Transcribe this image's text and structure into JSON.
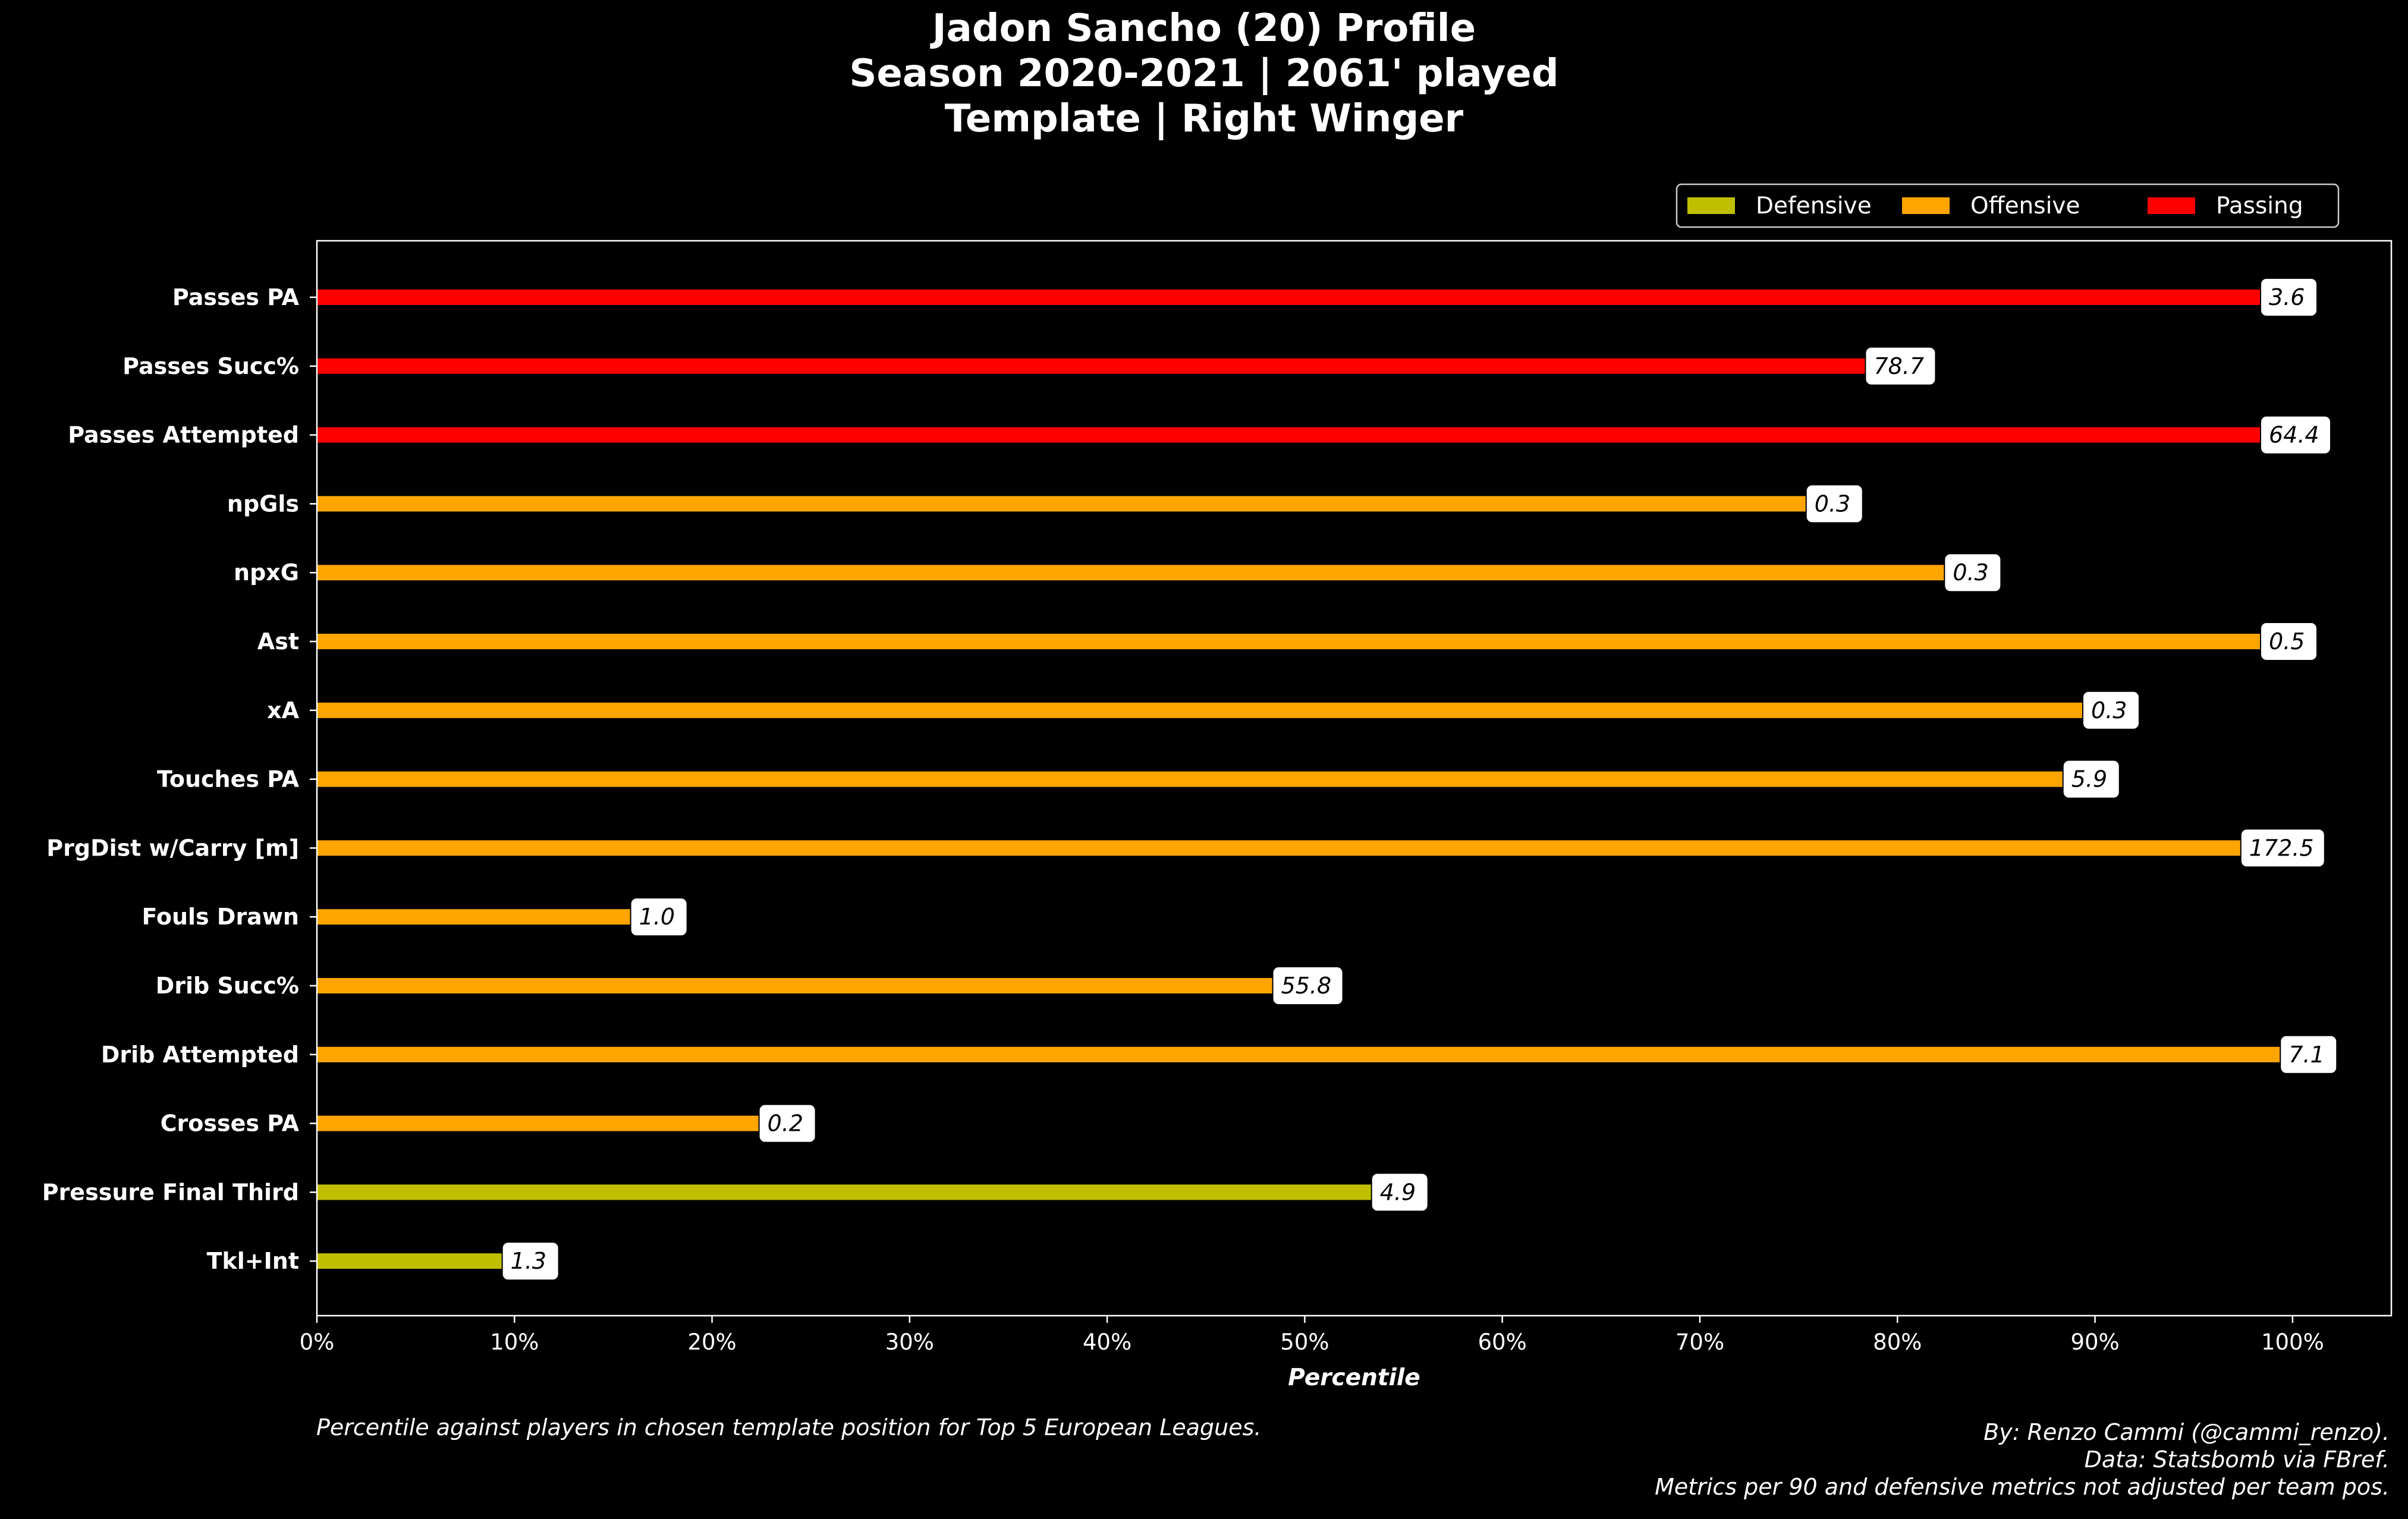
{
  "title_lines": [
    "Jadon Sancho (20) Profile",
    "Season 2020-2021 | 2061' played",
    "Template | Right Winger"
  ],
  "footer": {
    "left": "Percentile against players in chosen template position for Top 5 European Leagues.",
    "right_lines": [
      "By: Renzo Cammi (@cammi_renzo).",
      "Data: Statsbomb via FBref.",
      "Metrics per 90 and defensive metrics not adjusted per team pos."
    ]
  },
  "colors": {
    "background": "#000000",
    "Defensive": "#bfbf00",
    "Offensive": "#ffa500",
    "Passing": "#ff0000",
    "label_box": "#ffffff"
  },
  "chart_data": {
    "type": "bar",
    "orientation": "horizontal",
    "xlabel": "Percentile",
    "ylabel": "",
    "xlim": [
      0,
      105
    ],
    "x_ticks": [
      "0%",
      "10%",
      "20%",
      "30%",
      "40%",
      "50%",
      "60%",
      "70%",
      "80%",
      "90%",
      "100%"
    ],
    "legend": {
      "placement": "top-right, above plot",
      "entries": [
        "Defensive",
        "Offensive",
        "Passing"
      ]
    },
    "grid": false,
    "bars": [
      {
        "label": "Passes PA",
        "group": "Passing",
        "percentile": 98.5,
        "value_label": "3.6"
      },
      {
        "label": "Passes Succ%",
        "group": "Passing",
        "percentile": 78.5,
        "value_label": "78.7"
      },
      {
        "label": "Passes Attempted",
        "group": "Passing",
        "percentile": 98.5,
        "value_label": "64.4"
      },
      {
        "label": "npGls",
        "group": "Offensive",
        "percentile": 75.5,
        "value_label": "0.3"
      },
      {
        "label": "npxG",
        "group": "Offensive",
        "percentile": 82.5,
        "value_label": "0.3"
      },
      {
        "label": "Ast",
        "group": "Offensive",
        "percentile": 98.5,
        "value_label": "0.5"
      },
      {
        "label": "xA",
        "group": "Offensive",
        "percentile": 89.5,
        "value_label": "0.3"
      },
      {
        "label": "Touches PA",
        "group": "Offensive",
        "percentile": 88.5,
        "value_label": "5.9"
      },
      {
        "label": "PrgDist w/Carry [m]",
        "group": "Offensive",
        "percentile": 97.5,
        "value_label": "172.5"
      },
      {
        "label": "Fouls Drawn",
        "group": "Offensive",
        "percentile": 16.0,
        "value_label": "1.0"
      },
      {
        "label": "Drib Succ%",
        "group": "Offensive",
        "percentile": 48.5,
        "value_label": "55.8"
      },
      {
        "label": "Drib Attempted",
        "group": "Offensive",
        "percentile": 99.5,
        "value_label": "7.1"
      },
      {
        "label": "Crosses PA",
        "group": "Offensive",
        "percentile": 22.5,
        "value_label": "0.2"
      },
      {
        "label": "Pressure Final Third",
        "group": "Defensive",
        "percentile": 53.5,
        "value_label": "4.9"
      },
      {
        "label": "Tkl+Int",
        "group": "Defensive",
        "percentile": 9.5,
        "value_label": "1.3"
      }
    ]
  }
}
